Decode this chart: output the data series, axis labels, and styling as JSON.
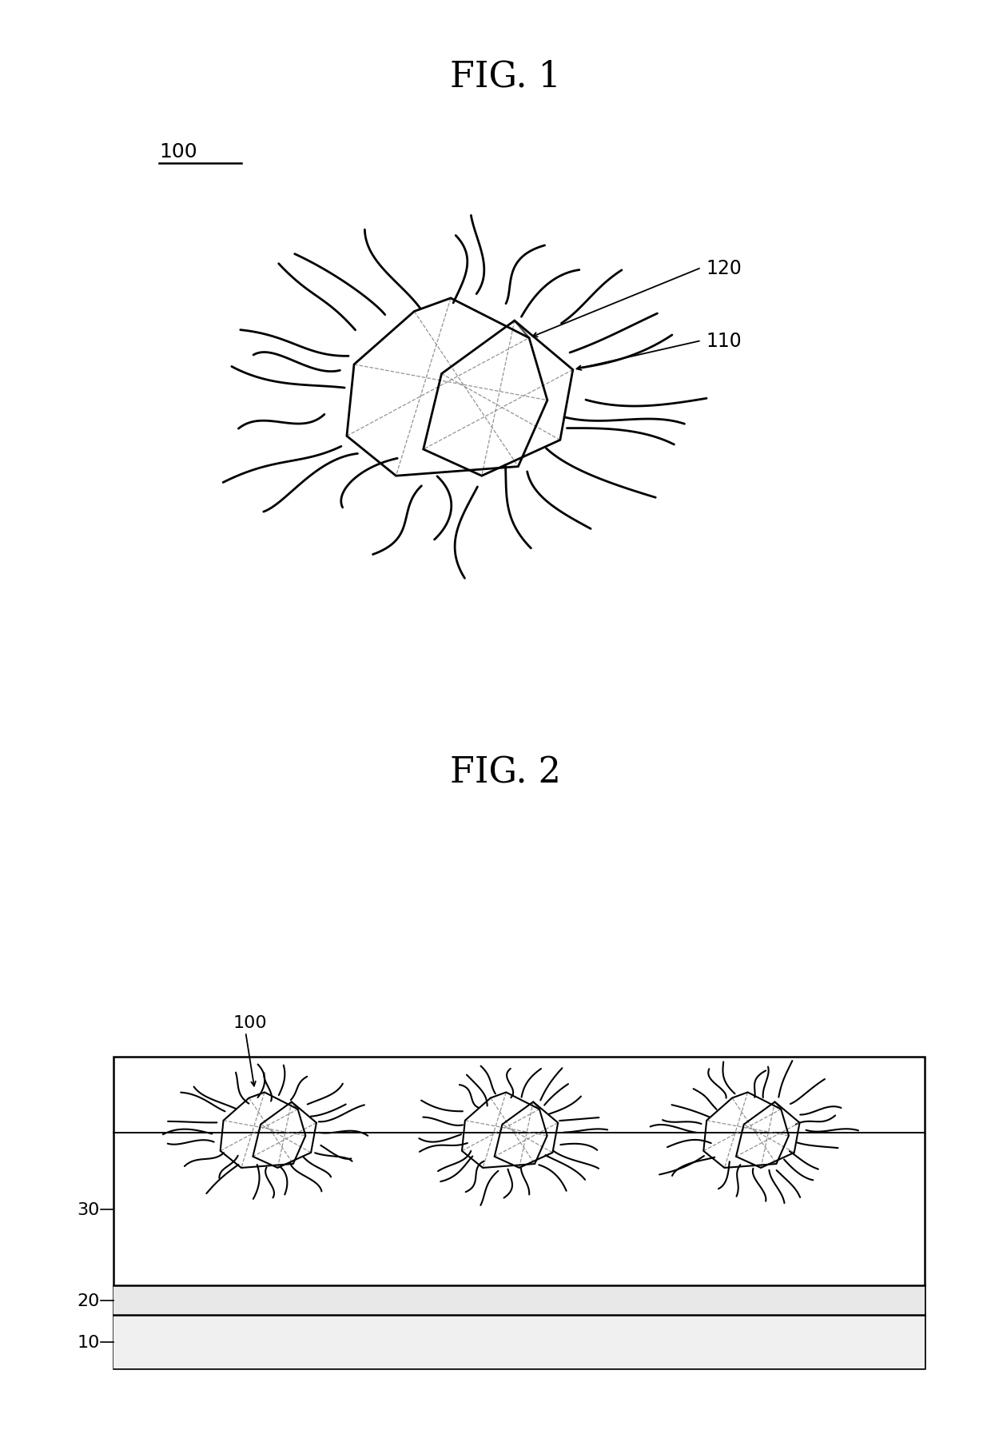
{
  "fig1_title": "FIG. 1",
  "fig2_title": "FIG. 2",
  "label_100_fig1": "100",
  "label_110": "110",
  "label_120": "120",
  "label_100_fig2": "100",
  "label_10": "10",
  "label_20": "20",
  "label_30": "30",
  "bg_color": "#ffffff",
  "line_color": "#000000",
  "dashed_color": "#888888"
}
